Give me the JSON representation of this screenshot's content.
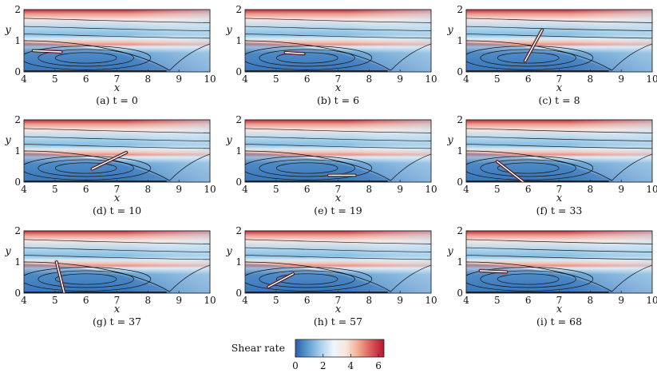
{
  "figure": {
    "colorbar": {
      "label": "Shear rate",
      "ticks": [
        "0",
        "2",
        "4",
        "6"
      ],
      "range": [
        0,
        6.4
      ],
      "colors": [
        "#2c5ea8",
        "#5f9fd2",
        "#a9d0ea",
        "#eef6fb",
        "#f8e6dc",
        "#f0a98e",
        "#d8595a",
        "#b5162f"
      ]
    }
  },
  "chart_data": {
    "type": "heatmap",
    "title": "",
    "shared_axes": {
      "xlabel": "x",
      "ylabel": "y",
      "xlim": [
        4,
        10
      ],
      "ylim": [
        0,
        2
      ],
      "xticks": [
        "4",
        "5",
        "6",
        "7",
        "8",
        "9",
        "10"
      ],
      "yticks": [
        "0",
        "1",
        "2"
      ]
    },
    "panels": [
      {
        "label": "(a)",
        "t": "t = 0",
        "fiber": {
          "x1": 4.3,
          "y1": 0.68,
          "x2": 5.2,
          "y2": 0.64
        }
      },
      {
        "label": "(b)",
        "t": "t = 6",
        "fiber": {
          "x1": 5.3,
          "y1": 0.62,
          "x2": 5.9,
          "y2": 0.58
        }
      },
      {
        "label": "(c)",
        "t": "t = 8",
        "fiber": {
          "x1": 5.9,
          "y1": 0.35,
          "x2": 6.45,
          "y2": 1.35
        }
      },
      {
        "label": "(d)",
        "t": "t = 10",
        "fiber": {
          "x1": 6.2,
          "y1": 0.42,
          "x2": 7.3,
          "y2": 0.95
        }
      },
      {
        "label": "(e)",
        "t": "t = 19",
        "fiber": {
          "x1": 6.7,
          "y1": 0.22,
          "x2": 7.55,
          "y2": 0.22
        }
      },
      {
        "label": "(f)",
        "t": "t = 33",
        "fiber": {
          "x1": 5.0,
          "y1": 0.66,
          "x2": 5.85,
          "y2": 0.0
        }
      },
      {
        "label": "(g)",
        "t": "t = 37",
        "fiber": {
          "x1": 5.05,
          "y1": 1.0,
          "x2": 5.3,
          "y2": 0.0
        }
      },
      {
        "label": "(h)",
        "t": "t = 57",
        "fiber": {
          "x1": 4.75,
          "y1": 0.2,
          "x2": 5.55,
          "y2": 0.62
        }
      },
      {
        "label": "(i)",
        "t": "t = 68",
        "fiber": {
          "x1": 4.45,
          "y1": 0.72,
          "x2": 5.3,
          "y2": 0.68
        }
      }
    ]
  }
}
